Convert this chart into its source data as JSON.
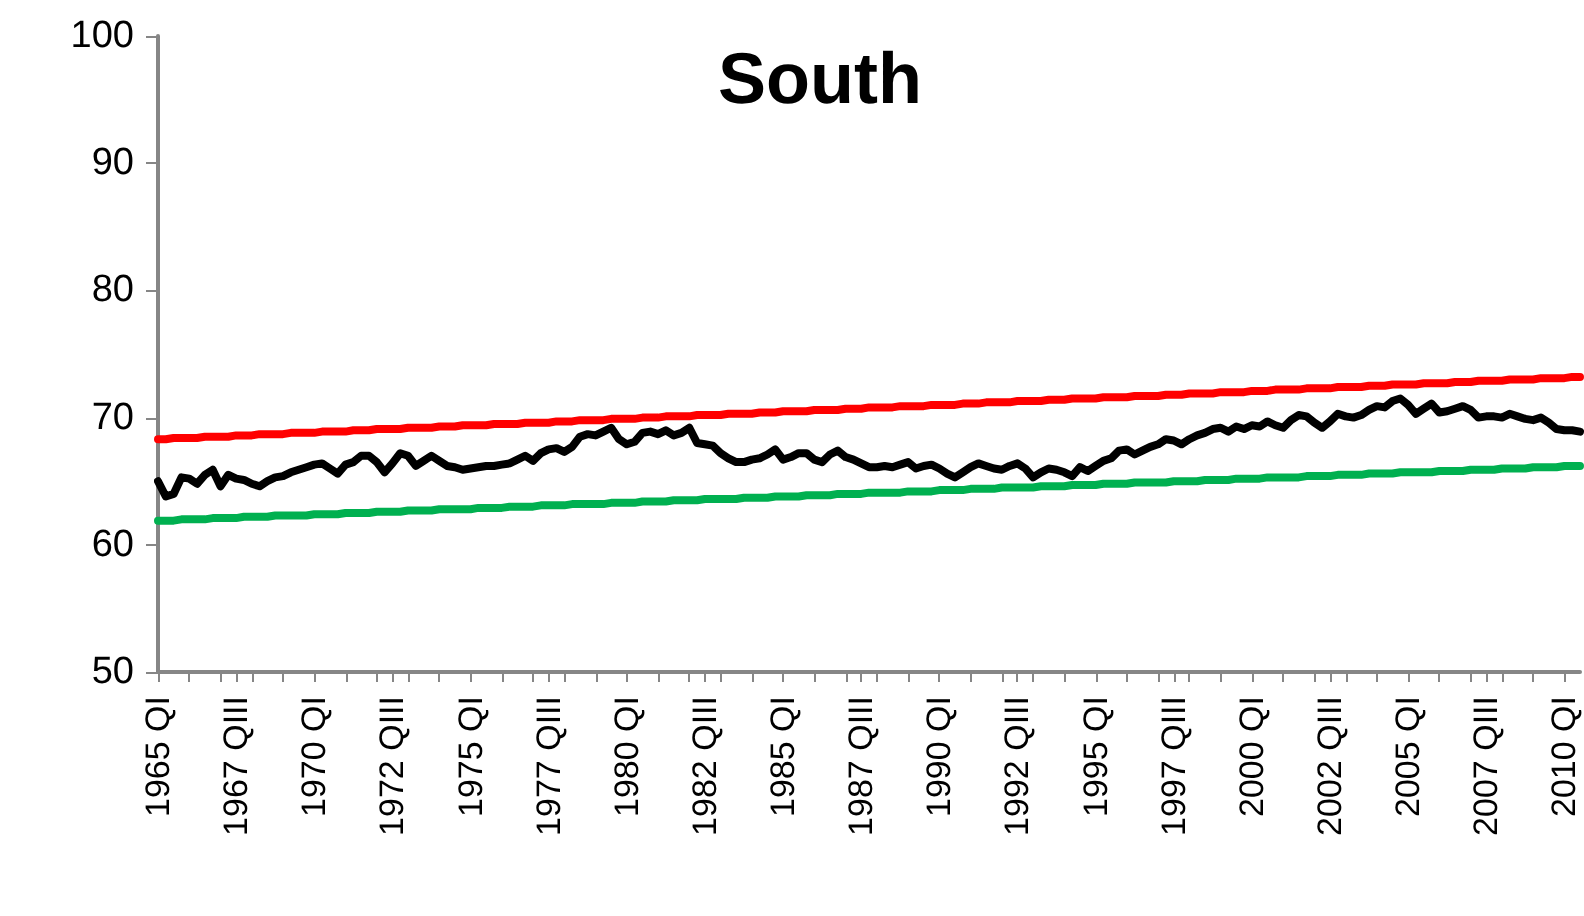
{
  "chart_data": {
    "type": "line",
    "title": "South",
    "x": [
      1965,
      1965.25,
      1965.5,
      1965.75,
      1966,
      1966.25,
      1966.5,
      1966.75,
      1967,
      1967.25,
      1967.5,
      1967.75,
      1968,
      1968.25,
      1968.5,
      1968.75,
      1969,
      1969.25,
      1969.5,
      1969.75,
      1970,
      1970.25,
      1970.5,
      1970.75,
      1971,
      1971.25,
      1971.5,
      1971.75,
      1972,
      1972.25,
      1972.5,
      1972.75,
      1973,
      1973.25,
      1973.5,
      1973.75,
      1974,
      1974.25,
      1974.5,
      1974.75,
      1975,
      1975.25,
      1975.5,
      1975.75,
      1976,
      1976.25,
      1976.5,
      1976.75,
      1977,
      1977.25,
      1977.5,
      1977.75,
      1978,
      1978.25,
      1978.5,
      1978.75,
      1979,
      1979.25,
      1979.5,
      1979.75,
      1980,
      1980.25,
      1980.5,
      1980.75,
      1981,
      1981.25,
      1981.5,
      1981.75,
      1982,
      1982.25,
      1982.5,
      1982.75,
      1983,
      1983.25,
      1983.5,
      1983.75,
      1984,
      1984.25,
      1984.5,
      1984.75,
      1985,
      1985.25,
      1985.5,
      1985.75,
      1986,
      1986.25,
      1986.5,
      1986.75,
      1987,
      1987.25,
      1987.5,
      1987.75,
      1988,
      1988.25,
      1988.5,
      1988.75,
      1989,
      1989.25,
      1989.5,
      1989.75,
      1990,
      1990.25,
      1990.5,
      1990.75,
      1991,
      1991.25,
      1991.5,
      1991.75,
      1992,
      1992.25,
      1992.5,
      1992.75,
      1993,
      1993.25,
      1993.5,
      1993.75,
      1994,
      1994.25,
      1994.5,
      1994.75,
      1995,
      1995.25,
      1995.5,
      1995.75,
      1996,
      1996.25,
      1996.5,
      1996.75,
      1997,
      1997.25,
      1997.5,
      1997.75,
      1998,
      1998.25,
      1998.5,
      1998.75,
      1999,
      1999.25,
      1999.5,
      1999.75,
      2000,
      2000.25,
      2000.5,
      2000.75,
      2001,
      2001.25,
      2001.5,
      2001.75,
      2002,
      2002.25,
      2002.5,
      2002.75,
      2003,
      2003.25,
      2003.5,
      2003.75,
      2004,
      2004.25,
      2004.5,
      2004.75,
      2005,
      2005.25,
      2005.5,
      2005.75,
      2006,
      2006.25,
      2006.5,
      2006.75,
      2007,
      2007.25,
      2007.5,
      2007.75,
      2008,
      2008.25,
      2008.5,
      2008.75,
      2009,
      2009.25,
      2009.5,
      2009.75,
      2010,
      2010.25,
      2010.5
    ],
    "series": [
      {
        "color": "#000000",
        "values": [
          65.0,
          63.8,
          64.0,
          65.3,
          65.2,
          64.8,
          65.5,
          65.9,
          64.6,
          65.5,
          65.2,
          65.1,
          64.8,
          64.6,
          65.0,
          65.3,
          65.4,
          65.7,
          65.9,
          66.1,
          66.3,
          66.4,
          66.0,
          65.6,
          66.3,
          66.5,
          67.0,
          67.0,
          66.5,
          65.7,
          66.4,
          67.2,
          67.0,
          66.2,
          66.6,
          67.0,
          66.6,
          66.2,
          66.1,
          65.9,
          66.0,
          66.1,
          66.2,
          66.2,
          66.3,
          66.4,
          66.7,
          67.0,
          66.6,
          67.2,
          67.5,
          67.6,
          67.3,
          67.7,
          68.5,
          68.7,
          68.6,
          68.9,
          69.2,
          68.3,
          67.9,
          68.1,
          68.8,
          68.9,
          68.7,
          69.0,
          68.6,
          68.8,
          69.2,
          68.0,
          67.9,
          67.8,
          67.2,
          66.8,
          66.5,
          66.5,
          66.7,
          66.8,
          67.1,
          67.5,
          66.7,
          66.9,
          67.2,
          67.2,
          66.7,
          66.5,
          67.1,
          67.4,
          66.9,
          66.7,
          66.4,
          66.1,
          66.1,
          66.2,
          66.1,
          66.3,
          66.5,
          66.0,
          66.2,
          66.3,
          66.0,
          65.6,
          65.3,
          65.7,
          66.1,
          66.4,
          66.2,
          66.0,
          65.9,
          66.2,
          66.4,
          66.0,
          65.3,
          65.7,
          66.0,
          65.9,
          65.7,
          65.4,
          66.1,
          65.8,
          66.2,
          66.6,
          66.8,
          67.4,
          67.5,
          67.1,
          67.4,
          67.7,
          67.9,
          68.3,
          68.2,
          67.9,
          68.3,
          68.6,
          68.8,
          69.1,
          69.2,
          68.9,
          69.3,
          69.1,
          69.4,
          69.3,
          69.7,
          69.4,
          69.2,
          69.8,
          70.2,
          70.1,
          69.6,
          69.2,
          69.7,
          70.3,
          70.1,
          70.0,
          70.2,
          70.6,
          70.9,
          70.8,
          71.3,
          71.5,
          71.0,
          70.3,
          70.7,
          71.1,
          70.4,
          70.5,
          70.7,
          70.9,
          70.6,
          70.0,
          70.1,
          70.1,
          70.0,
          70.3,
          70.1,
          69.9,
          69.8,
          70.0,
          69.6,
          69.1,
          69.0,
          69.0,
          68.9
        ]
      },
      {
        "color": "#ff0000",
        "values": [
          68.3,
          68.3,
          68.4,
          68.4,
          68.4,
          68.4,
          68.5,
          68.5,
          68.5,
          68.5,
          68.6,
          68.6,
          68.6,
          68.7,
          68.7,
          68.7,
          68.7,
          68.8,
          68.8,
          68.8,
          68.8,
          68.9,
          68.9,
          68.9,
          68.9,
          69.0,
          69.0,
          69.0,
          69.1,
          69.1,
          69.1,
          69.1,
          69.2,
          69.2,
          69.2,
          69.2,
          69.3,
          69.3,
          69.3,
          69.4,
          69.4,
          69.4,
          69.4,
          69.5,
          69.5,
          69.5,
          69.5,
          69.6,
          69.6,
          69.6,
          69.6,
          69.7,
          69.7,
          69.7,
          69.8,
          69.8,
          69.8,
          69.8,
          69.9,
          69.9,
          69.9,
          69.9,
          70.0,
          70.0,
          70.0,
          70.1,
          70.1,
          70.1,
          70.1,
          70.2,
          70.2,
          70.2,
          70.2,
          70.3,
          70.3,
          70.3,
          70.3,
          70.4,
          70.4,
          70.4,
          70.5,
          70.5,
          70.5,
          70.5,
          70.6,
          70.6,
          70.6,
          70.6,
          70.7,
          70.7,
          70.7,
          70.8,
          70.8,
          70.8,
          70.8,
          70.9,
          70.9,
          70.9,
          70.9,
          71.0,
          71.0,
          71.0,
          71.0,
          71.1,
          71.1,
          71.1,
          71.2,
          71.2,
          71.2,
          71.2,
          71.3,
          71.3,
          71.3,
          71.3,
          71.4,
          71.4,
          71.4,
          71.5,
          71.5,
          71.5,
          71.5,
          71.6,
          71.6,
          71.6,
          71.6,
          71.7,
          71.7,
          71.7,
          71.7,
          71.8,
          71.8,
          71.8,
          71.9,
          71.9,
          71.9,
          71.9,
          72.0,
          72.0,
          72.0,
          72.0,
          72.1,
          72.1,
          72.1,
          72.2,
          72.2,
          72.2,
          72.2,
          72.3,
          72.3,
          72.3,
          72.3,
          72.4,
          72.4,
          72.4,
          72.4,
          72.5,
          72.5,
          72.5,
          72.6,
          72.6,
          72.6,
          72.6,
          72.7,
          72.7,
          72.7,
          72.7,
          72.8,
          72.8,
          72.8,
          72.9,
          72.9,
          72.9,
          72.9,
          73.0,
          73.0,
          73.0,
          73.0,
          73.1,
          73.1,
          73.1,
          73.1,
          73.2,
          73.2
        ]
      },
      {
        "color": "#00b050",
        "values": [
          61.9,
          61.9,
          61.9,
          62.0,
          62.0,
          62.0,
          62.0,
          62.1,
          62.1,
          62.1,
          62.1,
          62.2,
          62.2,
          62.2,
          62.2,
          62.3,
          62.3,
          62.3,
          62.3,
          62.3,
          62.4,
          62.4,
          62.4,
          62.4,
          62.5,
          62.5,
          62.5,
          62.5,
          62.6,
          62.6,
          62.6,
          62.6,
          62.7,
          62.7,
          62.7,
          62.7,
          62.8,
          62.8,
          62.8,
          62.8,
          62.8,
          62.9,
          62.9,
          62.9,
          62.9,
          63.0,
          63.0,
          63.0,
          63.0,
          63.1,
          63.1,
          63.1,
          63.1,
          63.2,
          63.2,
          63.2,
          63.2,
          63.2,
          63.3,
          63.3,
          63.3,
          63.3,
          63.4,
          63.4,
          63.4,
          63.4,
          63.5,
          63.5,
          63.5,
          63.5,
          63.6,
          63.6,
          63.6,
          63.6,
          63.6,
          63.7,
          63.7,
          63.7,
          63.7,
          63.8,
          63.8,
          63.8,
          63.8,
          63.9,
          63.9,
          63.9,
          63.9,
          64.0,
          64.0,
          64.0,
          64.0,
          64.1,
          64.1,
          64.1,
          64.1,
          64.1,
          64.2,
          64.2,
          64.2,
          64.2,
          64.3,
          64.3,
          64.3,
          64.3,
          64.4,
          64.4,
          64.4,
          64.4,
          64.5,
          64.5,
          64.5,
          64.5,
          64.5,
          64.6,
          64.6,
          64.6,
          64.6,
          64.7,
          64.7,
          64.7,
          64.7,
          64.8,
          64.8,
          64.8,
          64.8,
          64.9,
          64.9,
          64.9,
          64.9,
          64.9,
          65.0,
          65.0,
          65.0,
          65.0,
          65.1,
          65.1,
          65.1,
          65.1,
          65.2,
          65.2,
          65.2,
          65.2,
          65.3,
          65.3,
          65.3,
          65.3,
          65.3,
          65.4,
          65.4,
          65.4,
          65.4,
          65.5,
          65.5,
          65.5,
          65.5,
          65.6,
          65.6,
          65.6,
          65.6,
          65.7,
          65.7,
          65.7,
          65.7,
          65.7,
          65.8,
          65.8,
          65.8,
          65.8,
          65.9,
          65.9,
          65.9,
          65.9,
          66.0,
          66.0,
          66.0,
          66.0,
          66.1,
          66.1,
          66.1,
          66.1,
          66.2,
          66.2,
          66.2
        ]
      }
    ],
    "xlim": [
      1965,
      2010.5
    ],
    "xticks": [
      {
        "value": 1965,
        "label": "1965 QI"
      },
      {
        "value": 1967.5,
        "label": "1967 QIII"
      },
      {
        "value": 1970,
        "label": "1970 QI"
      },
      {
        "value": 1972.5,
        "label": "1972 QIII"
      },
      {
        "value": 1975,
        "label": "1975 QI"
      },
      {
        "value": 1977.5,
        "label": "1977 QIII"
      },
      {
        "value": 1980,
        "label": "1980 QI"
      },
      {
        "value": 1982.5,
        "label": "1982 QIII"
      },
      {
        "value": 1985,
        "label": "1985 QI"
      },
      {
        "value": 1987.5,
        "label": "1987 QIII"
      },
      {
        "value": 1990,
        "label": "1990 QI"
      },
      {
        "value": 1992.5,
        "label": "1992 QIII"
      },
      {
        "value": 1995,
        "label": "1995 QI"
      },
      {
        "value": 1997.5,
        "label": "1997 QIII"
      },
      {
        "value": 2000,
        "label": "2000 QI"
      },
      {
        "value": 2002.5,
        "label": "2002 QIII"
      },
      {
        "value": 2005,
        "label": "2005 QI"
      },
      {
        "value": 2007.5,
        "label": "2007 QIII"
      },
      {
        "value": 2010,
        "label": "2010 QI"
      }
    ],
    "ylim": [
      50,
      100
    ],
    "yticks": [
      50,
      60,
      70,
      80,
      90,
      100
    ],
    "grid": false,
    "marker": "none",
    "line_style": "solid"
  }
}
